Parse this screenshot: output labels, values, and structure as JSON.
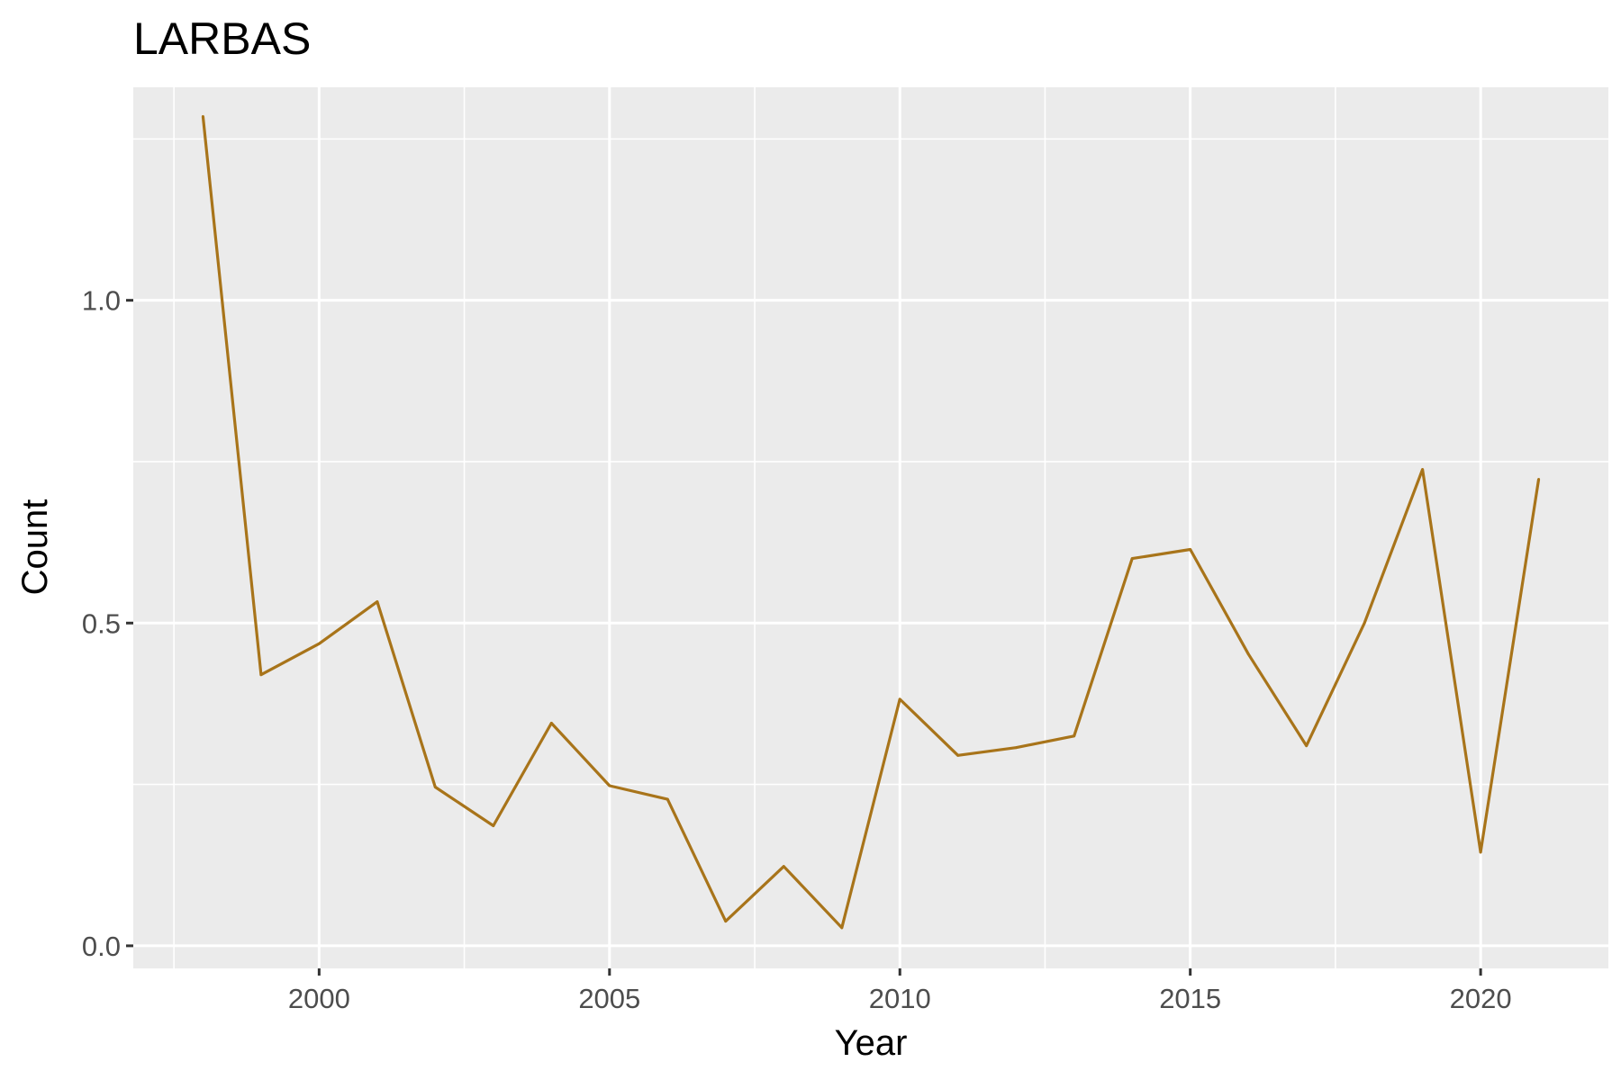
{
  "chart_data": {
    "type": "line",
    "title": "LARBAS",
    "xlabel": "Year",
    "ylabel": "Count",
    "xlim": [
      1996.8,
      2022.2
    ],
    "ylim": [
      -0.035,
      1.33
    ],
    "x_ticks": [
      2000,
      2005,
      2010,
      2015,
      2020
    ],
    "x_tick_labels": [
      "2000",
      "2005",
      "2010",
      "2015",
      "2020"
    ],
    "y_ticks": [
      0.0,
      0.5,
      1.0
    ],
    "y_tick_labels": [
      "0.0",
      "0.5",
      "1.0"
    ],
    "grid": true,
    "legend": "none",
    "colors": {
      "line": "#A8741A",
      "panel": "#EBEBEB",
      "grid": "#FFFFFF"
    },
    "series": [
      {
        "x": [
          1998,
          1999,
          2000,
          2001,
          2002,
          2003,
          2004,
          2005,
          2006,
          2007,
          2008,
          2009,
          2010,
          2011,
          2012,
          2013,
          2014,
          2015,
          2016,
          2017,
          2018,
          2019,
          2020,
          2021
        ],
        "values": [
          1.285,
          0.42,
          0.468,
          0.533,
          0.246,
          0.186,
          0.345,
          0.248,
          0.227,
          0.038,
          0.123,
          0.028,
          0.382,
          0.295,
          0.307,
          0.325,
          0.6,
          0.614,
          0.452,
          0.31,
          0.5,
          0.738,
          0.145,
          0.723
        ]
      }
    ]
  }
}
